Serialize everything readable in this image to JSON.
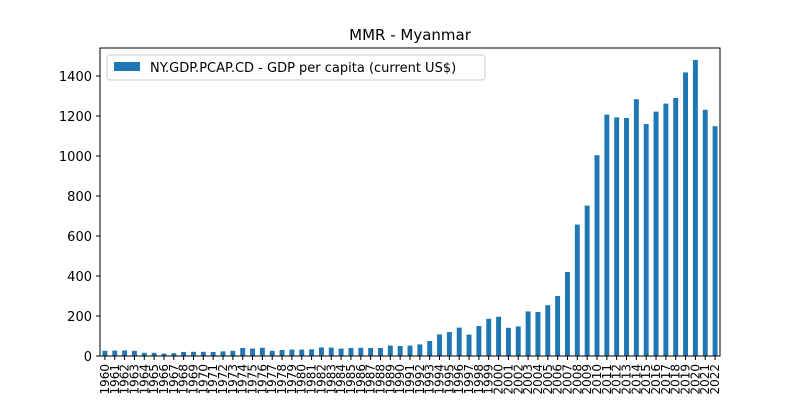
{
  "chart_data": {
    "type": "bar",
    "title": "MMR - Myanmar",
    "xlabel": "",
    "ylabel": "",
    "ylim": [
      0,
      1540
    ],
    "yticks": [
      0,
      200,
      400,
      600,
      800,
      1000,
      1200,
      1400
    ],
    "grid": false,
    "legend_position": "top-left",
    "series": [
      {
        "name": "NY.GDP.PCAP.CD - GDP per capita (current US$)",
        "color": "#1f77b4",
        "values": [
          26,
          27,
          28,
          26,
          16,
          16,
          12,
          14,
          20,
          21,
          21,
          20,
          23,
          26,
          40,
          37,
          41,
          26,
          30,
          32,
          32,
          33,
          43,
          42,
          37,
          40,
          41,
          40,
          40,
          52,
          50,
          52,
          58,
          75,
          108,
          120,
          142,
          107,
          150,
          186,
          196,
          141,
          148,
          223,
          220,
          254,
          300,
          420,
          657,
          752,
          1004,
          1207,
          1193,
          1190,
          1284,
          1160,
          1222,
          1262,
          1290,
          1418,
          1480,
          1231,
          1149
        ]
      }
    ],
    "categories": [
      "1960",
      "1961",
      "1962",
      "1963",
      "1964",
      "1965",
      "1966",
      "1967",
      "1968",
      "1969",
      "1970",
      "1971",
      "1972",
      "1973",
      "1974",
      "1975",
      "1976",
      "1977",
      "1978",
      "1979",
      "1980",
      "1981",
      "1982",
      "1983",
      "1984",
      "1985",
      "1986",
      "1987",
      "1988",
      "1989",
      "1990",
      "1991",
      "1992",
      "1993",
      "1994",
      "1995",
      "1996",
      "1997",
      "1998",
      "1999",
      "2000",
      "2001",
      "2002",
      "2003",
      "2004",
      "2005",
      "2006",
      "2007",
      "2008",
      "2009",
      "2010",
      "2011",
      "2012",
      "2013",
      "2014",
      "2015",
      "2016",
      "2017",
      "2018",
      "2019",
      "2020",
      "2021",
      "2022"
    ]
  }
}
